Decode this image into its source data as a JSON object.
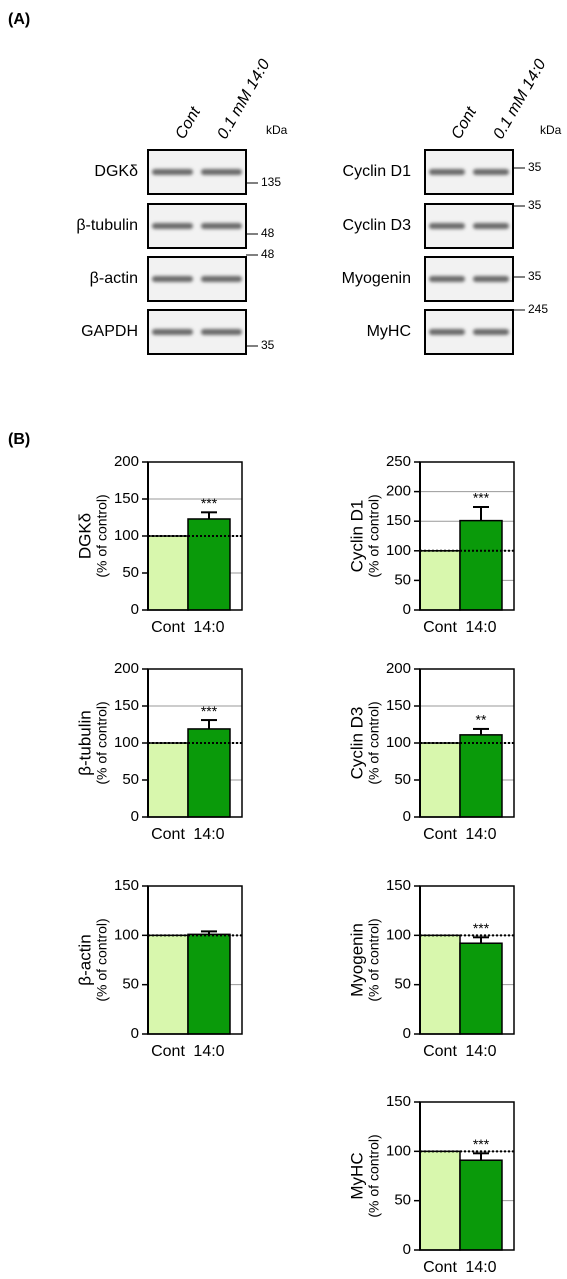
{
  "figure": {
    "panel_a_label": "(A)",
    "panel_b_label": "(B)"
  },
  "blots": {
    "lanes": [
      "Cont",
      "0.1 mM 14:0"
    ],
    "unit": "kDa",
    "left": [
      {
        "name": "DGKδ",
        "marker": "135"
      },
      {
        "name": "β-tubulin",
        "marker": "48"
      },
      {
        "name": "β-actin",
        "marker": "48"
      },
      {
        "name": "GAPDH",
        "marker": "35"
      }
    ],
    "right": [
      {
        "name": "Cyclin D1",
        "marker": "35"
      },
      {
        "name": "Cyclin D3",
        "marker": "35"
      },
      {
        "name": "Myogenin",
        "marker": "35"
      },
      {
        "name": "MyHC",
        "marker": "245"
      }
    ]
  },
  "chart_data": [
    {
      "type": "bar",
      "ylabel": "DGKδ",
      "ylabel_sub": "(% of control)",
      "categories": [
        "Cont",
        "14:0"
      ],
      "values": [
        100,
        123
      ],
      "errors": [
        null,
        9
      ],
      "annotation": "***",
      "colors": [
        "#d8f7ad",
        "#0a9a0a"
      ],
      "ylim": [
        0,
        200
      ],
      "yticks": [
        0,
        50,
        100,
        150,
        200
      ],
      "grid": true,
      "reference_line": 100
    },
    {
      "type": "bar",
      "ylabel": "Cyclin D1",
      "ylabel_sub": "(% of control)",
      "categories": [
        "Cont",
        "14:0"
      ],
      "values": [
        100,
        151
      ],
      "errors": [
        null,
        23
      ],
      "annotation": "***",
      "colors": [
        "#d8f7ad",
        "#0a9a0a"
      ],
      "ylim": [
        0,
        250
      ],
      "yticks": [
        0,
        50,
        100,
        150,
        200,
        250
      ],
      "grid": true,
      "reference_line": 100
    },
    {
      "type": "bar",
      "ylabel": "β-tubulin",
      "ylabel_sub": "(% of control)",
      "categories": [
        "Cont",
        "14:0"
      ],
      "values": [
        100,
        119
      ],
      "errors": [
        null,
        12
      ],
      "annotation": "***",
      "colors": [
        "#d8f7ad",
        "#0a9a0a"
      ],
      "ylim": [
        0,
        200
      ],
      "yticks": [
        0,
        50,
        100,
        150,
        200
      ],
      "grid": true,
      "reference_line": 100
    },
    {
      "type": "bar",
      "ylabel": "Cyclin D3",
      "ylabel_sub": "(% of control)",
      "categories": [
        "Cont",
        "14:0"
      ],
      "values": [
        100,
        111
      ],
      "errors": [
        null,
        8
      ],
      "annotation": "**",
      "colors": [
        "#d8f7ad",
        "#0a9a0a"
      ],
      "ylim": [
        0,
        200
      ],
      "yticks": [
        0,
        50,
        100,
        150,
        200
      ],
      "grid": true,
      "reference_line": 100
    },
    {
      "type": "bar",
      "ylabel": "β-actin",
      "ylabel_sub": "(% of control)",
      "categories": [
        "Cont",
        "14:0"
      ],
      "values": [
        100,
        101
      ],
      "errors": [
        null,
        3
      ],
      "colors": [
        "#d8f7ad",
        "#0a9a0a"
      ],
      "ylim": [
        0,
        150
      ],
      "yticks": [
        0,
        50,
        100,
        150
      ],
      "grid": true,
      "reference_line": 100
    },
    {
      "type": "bar",
      "ylabel": "Myogenin",
      "ylabel_sub": "(% of control)",
      "categories": [
        "Cont",
        "14:0"
      ],
      "values": [
        100,
        92
      ],
      "errors": [
        null,
        6
      ],
      "annotation": "***",
      "colors": [
        "#d8f7ad",
        "#0a9a0a"
      ],
      "ylim": [
        0,
        150
      ],
      "yticks": [
        0,
        50,
        100,
        150
      ],
      "grid": true,
      "reference_line": 100
    },
    {
      "type": "bar",
      "ylabel": "MyHC",
      "ylabel_sub": "(% of control)",
      "categories": [
        "Cont",
        "14:0"
      ],
      "values": [
        100,
        91
      ],
      "errors": [
        null,
        7
      ],
      "annotation": "***",
      "colors": [
        "#d8f7ad",
        "#0a9a0a"
      ],
      "ylim": [
        0,
        150
      ],
      "yticks": [
        0,
        50,
        100,
        150
      ],
      "grid": true,
      "reference_line": 100
    }
  ]
}
